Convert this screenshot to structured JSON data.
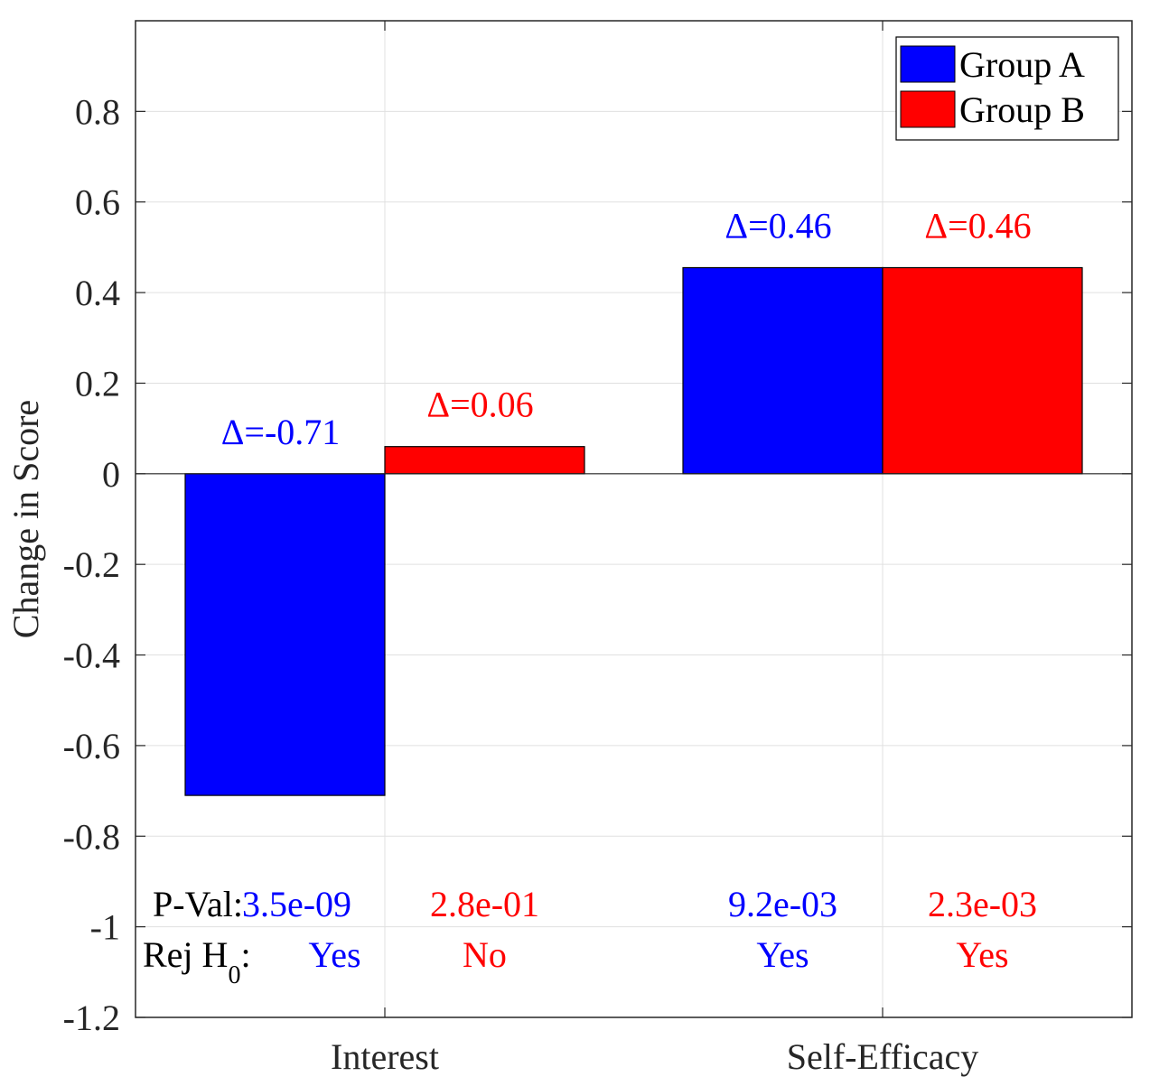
{
  "chart_data": {
    "type": "bar",
    "categories": [
      "Interest",
      "Self-Efficacy"
    ],
    "series": [
      {
        "name": "Group A",
        "color": "#0000ff",
        "values": [
          -0.71,
          0.455
        ]
      },
      {
        "name": "Group B",
        "color": "#ff0000",
        "values": [
          0.06,
          0.455
        ]
      }
    ],
    "ylabel": "Change in Score",
    "xlabel": "",
    "ylim": [
      -1.2,
      1.0
    ],
    "yticks": [
      0.8,
      0.6,
      0.4,
      0.2,
      0,
      -0.2,
      -0.4,
      -0.6,
      -0.8,
      -1,
      -1.2
    ],
    "ytick_labels": [
      "0.8",
      "0.6",
      "0.4",
      "0.2",
      "0",
      "-0.2",
      "-0.4",
      "-0.6",
      "-0.8",
      "-1",
      "-1.2"
    ],
    "grid": true,
    "legend_position": "top-right",
    "delta_labels": [
      [
        "Δ=-0.71",
        "Δ=0.06"
      ],
      [
        "Δ=0.46",
        "Δ=0.46"
      ]
    ],
    "pvalue_label": "P-Val:",
    "pvalues": [
      [
        "3.5e-09",
        "2.8e-01"
      ],
      [
        "9.2e-03",
        "2.3e-03"
      ]
    ],
    "reject_label": "Rej H",
    "reject_subscript": "0",
    "reject_suffix": ":",
    "reject": [
      [
        "Yes",
        "No"
      ],
      [
        "Yes",
        "Yes"
      ]
    ]
  }
}
